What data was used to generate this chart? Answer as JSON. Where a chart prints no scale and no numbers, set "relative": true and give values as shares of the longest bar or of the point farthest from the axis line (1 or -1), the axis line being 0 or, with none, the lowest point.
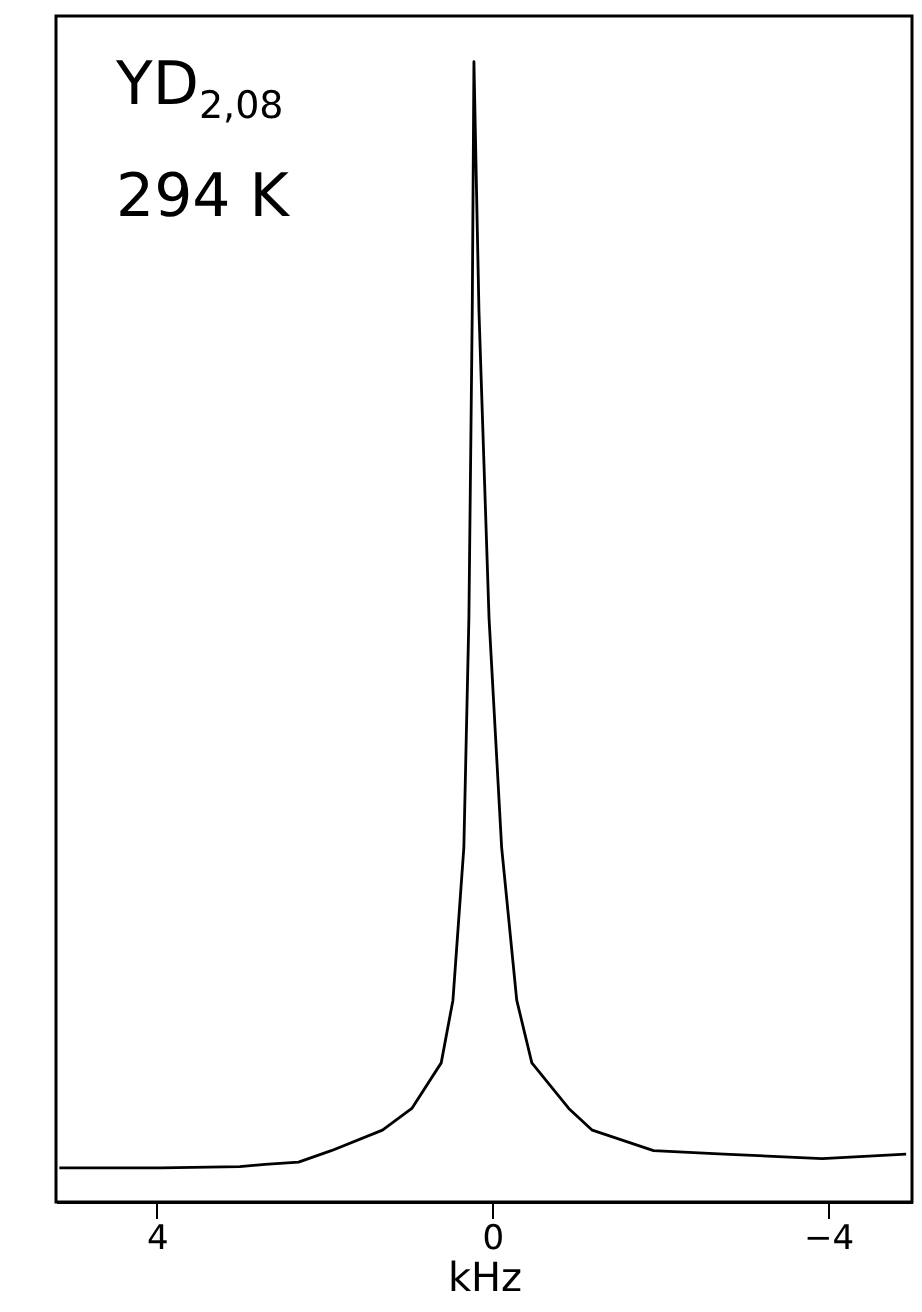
{
  "chart_data": {
    "type": "line",
    "relative": true,
    "xlabel": "kHz",
    "annotations": [
      "YD$_{2,08}$",
      "294 K"
    ],
    "x": [
      5.16,
      3.95,
      3.01,
      2.71,
      2.31,
      1.92,
      1.31,
      0.96,
      0.61,
      0.47,
      0.34,
      0.28,
      0.24,
      0.22,
      0.16,
      0.04,
      -0.11,
      -0.29,
      -0.47,
      -0.91,
      -1.19,
      -1.92,
      -2.76,
      -3.93,
      -4.93
    ],
    "series": [
      {
        "color": "#000000",
        "values": [
          0.03,
          0.03,
          0.031,
          0.033,
          0.035,
          0.045,
          0.063,
          0.082,
          0.122,
          0.177,
          0.311,
          0.512,
          0.781,
          1,
          0.781,
          0.512,
          0.311,
          0.177,
          0.122,
          0.082,
          0.063,
          0.045,
          0.042,
          0.038,
          0.042
        ]
      }
    ],
    "xlim": [
      5.2,
      -5.0
    ],
    "xticks": [
      4,
      0,
      -4
    ],
    "grid": false,
    "marker": "none",
    "line_style": "solid"
  }
}
